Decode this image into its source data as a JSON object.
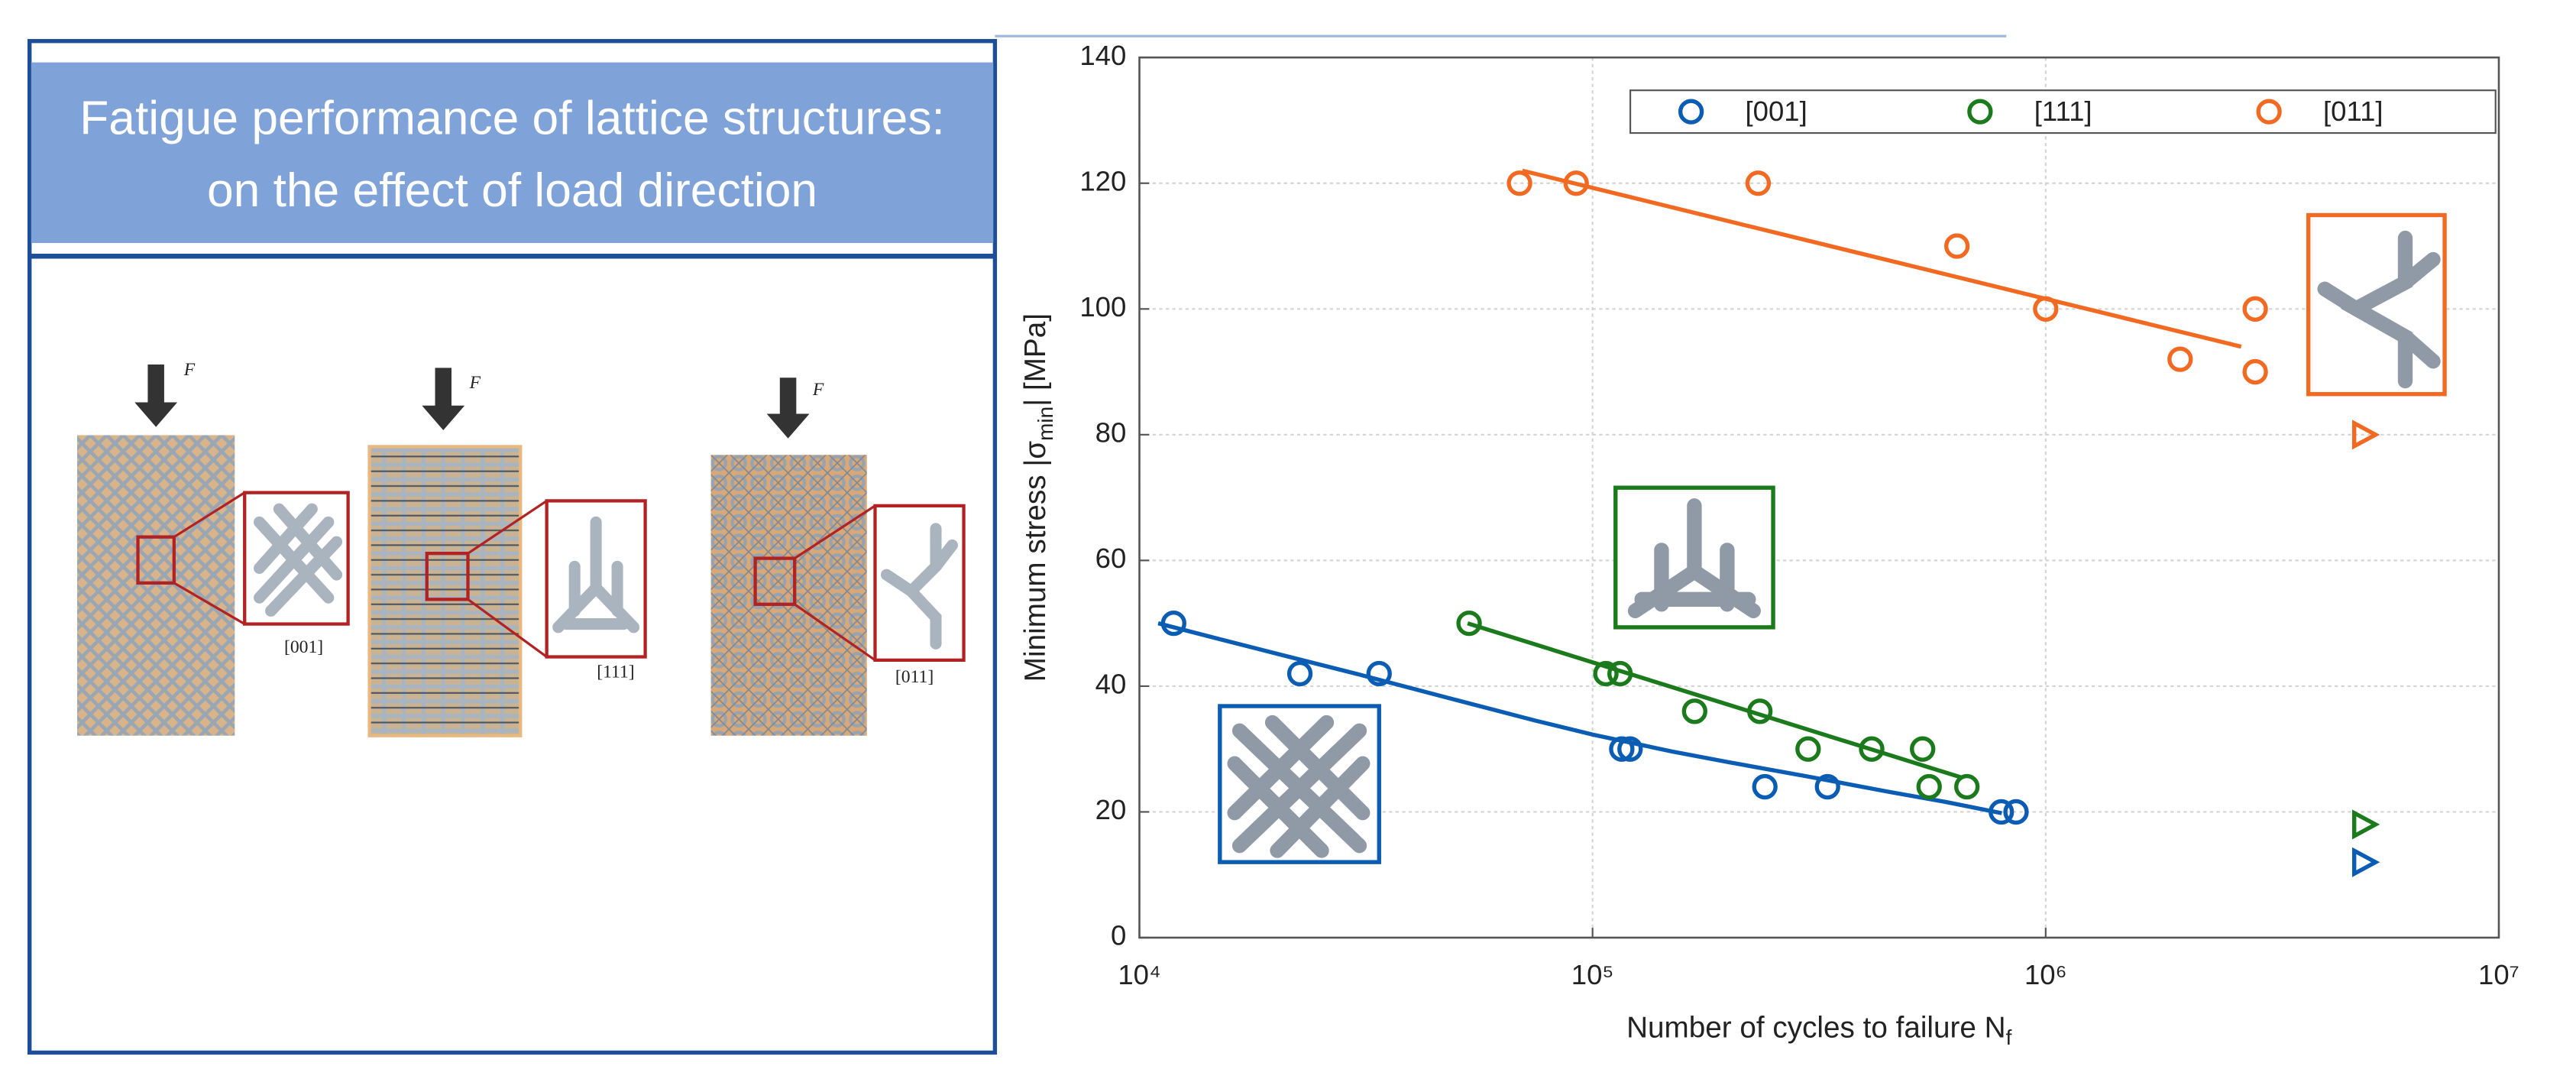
{
  "left_panel": {
    "title_lines": [
      "Fatigue performance of lattice structures:",
      "on  the effect of load direction"
    ],
    "panels": [
      {
        "force": "F",
        "label": "[001]"
      },
      {
        "force": "F",
        "label": "[111]"
      },
      {
        "force": "F",
        "label": "[011]"
      }
    ]
  },
  "chart_data": {
    "type": "scatter",
    "xlabel": [
      "Number of cycles to failure N",
      "f"
    ],
    "ylabel": [
      "Minimum stress |σ",
      "min",
      "| [MPa]"
    ],
    "xscale": "log",
    "xlim": [
      10000,
      10000000
    ],
    "xticks": [
      {
        "value": 10000,
        "label": "10⁴"
      },
      {
        "value": 100000,
        "label": "10⁵"
      },
      {
        "value": 1000000,
        "label": "10⁶"
      },
      {
        "value": 10000000,
        "label": "10⁷"
      }
    ],
    "ylim": [
      0,
      140
    ],
    "yticks": [
      0,
      20,
      40,
      60,
      80,
      100,
      120,
      140
    ],
    "grid": true,
    "legend": "upper right",
    "series": [
      {
        "name": "[001]",
        "color": "#0b5cb3",
        "x": [
          11900,
          22600,
          33800,
          116000,
          121000,
          240000,
          330000,
          798000,
          860000
        ],
        "values": [
          50,
          42,
          42,
          30,
          30,
          24,
          24,
          20,
          20
        ],
        "runout": {
          "x": [
            5000000
          ],
          "values": [
            12
          ]
        },
        "fit": {
          "x": [
            11000,
            15000,
            20000,
            30000,
            50000,
            75000,
            100000,
            150000,
            200000,
            300000,
            450000,
            600000,
            800000
          ],
          "values": [
            50,
            47.5,
            45.2,
            42,
            37.8,
            34.5,
            32.3,
            29.6,
            27.9,
            25.6,
            23.2,
            21.6,
            19.8
          ]
        }
      },
      {
        "name": "[111]",
        "color": "#1b7a1b",
        "x": [
          53400,
          107000,
          115000,
          168000,
          234000,
          299000,
          413000,
          535000,
          553000,
          670000
        ],
        "values": [
          50,
          42,
          42,
          36,
          36,
          30,
          30,
          30,
          24,
          24
        ],
        "runout": {
          "x": [
            5000000
          ],
          "values": [
            18
          ]
        },
        "fit": {
          "x": [
            53000,
            650000
          ],
          "values": [
            50,
            25.5
          ]
        }
      },
      {
        "name": "[011]",
        "color": "#f26a22",
        "x": [
          69000,
          92000,
          232000,
          637000,
          1000000,
          1980000,
          2900000,
          2900000
        ],
        "values": [
          120,
          120,
          120,
          110,
          100,
          92,
          100,
          90
        ],
        "runout": {
          "x": [
            5000000
          ],
          "values": [
            80
          ]
        },
        "fit": {
          "x": [
            70000,
            2700000
          ],
          "values": [
            122,
            94
          ]
        }
      }
    ]
  }
}
